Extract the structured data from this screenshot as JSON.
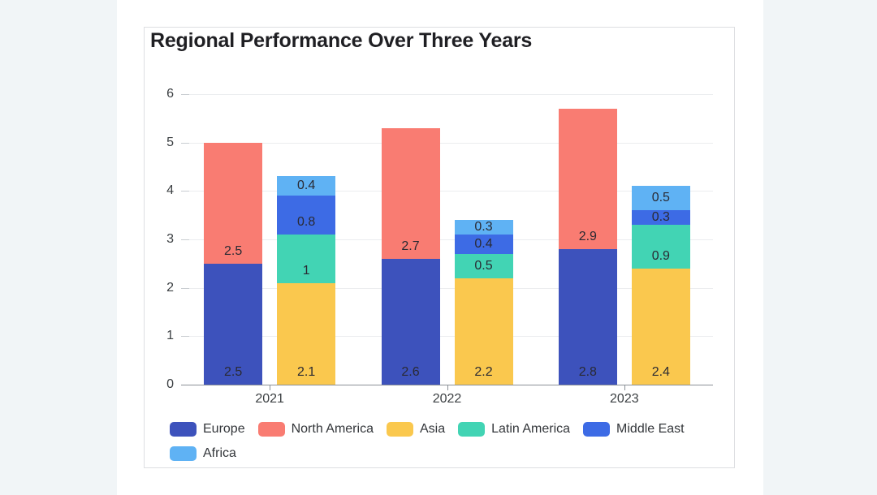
{
  "chart_data": {
    "type": "bar",
    "stacked": true,
    "title": "Regional Performance Over Three Years",
    "categories": [
      "2021",
      "2022",
      "2023"
    ],
    "series": [
      {
        "name": "Europe",
        "stack": "A",
        "color": "#3D52BC",
        "values": [
          2.5,
          2.6,
          2.8
        ]
      },
      {
        "name": "North America",
        "stack": "A",
        "color": "#F97C72",
        "values": [
          2.5,
          2.7,
          2.9
        ]
      },
      {
        "name": "Asia",
        "stack": "B",
        "color": "#FAC84E",
        "values": [
          2.1,
          2.2,
          2.4
        ]
      },
      {
        "name": "Latin America",
        "stack": "B",
        "color": "#42D4B4",
        "values": [
          1,
          0.5,
          0.9
        ]
      },
      {
        "name": "Middle East",
        "stack": "B",
        "color": "#3D6BE5",
        "values": [
          0.8,
          0.4,
          0.3
        ]
      },
      {
        "name": "Africa",
        "stack": "B",
        "color": "#5FB2F4",
        "values": [
          0.4,
          0.3,
          0.5
        ]
      }
    ],
    "ylim": [
      0,
      6
    ],
    "yticks": [
      0,
      1,
      2,
      3,
      4,
      5,
      6
    ],
    "grid": true,
    "bar_value_labels": true,
    "legend_position": "bottom",
    "legend": [
      "Europe",
      "North America",
      "Asia",
      "Latin America",
      "Middle East",
      "Africa"
    ]
  },
  "page": {
    "margin_strip_color": "#F1F5F7",
    "card_background": "#FFFFFF",
    "card_border_color": "#DDDFE2"
  }
}
